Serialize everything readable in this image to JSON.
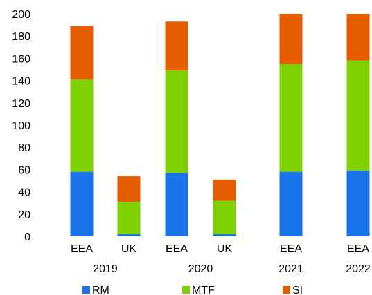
{
  "chart_data": {
    "type": "bar",
    "stacked": true,
    "categories": [
      "EEA",
      "UK",
      "EEA",
      "UK",
      "EEA",
      "EEA"
    ],
    "groups": [
      {
        "label": "2019",
        "categories": [
          0,
          1
        ]
      },
      {
        "label": "2020",
        "categories": [
          2,
          3
        ]
      },
      {
        "label": "2021",
        "categories": [
          4
        ]
      },
      {
        "label": "2022",
        "categories": [
          5
        ]
      }
    ],
    "series": [
      {
        "name": "RM",
        "color": "#1a73e8",
        "values": [
          58,
          2,
          57,
          2,
          58,
          59
        ]
      },
      {
        "name": "MTF",
        "color": "#7ed000",
        "values": [
          83,
          29,
          92,
          30,
          97,
          99
        ]
      },
      {
        "name": "SI",
        "color": "#e65c00",
        "values": [
          48,
          23,
          44,
          19,
          45,
          42
        ]
      }
    ],
    "ylim": [
      0,
      200
    ],
    "yticks": [
      0,
      20,
      40,
      60,
      80,
      100,
      120,
      140,
      160,
      180,
      200
    ],
    "grid": false,
    "legend_position": "bottom"
  }
}
